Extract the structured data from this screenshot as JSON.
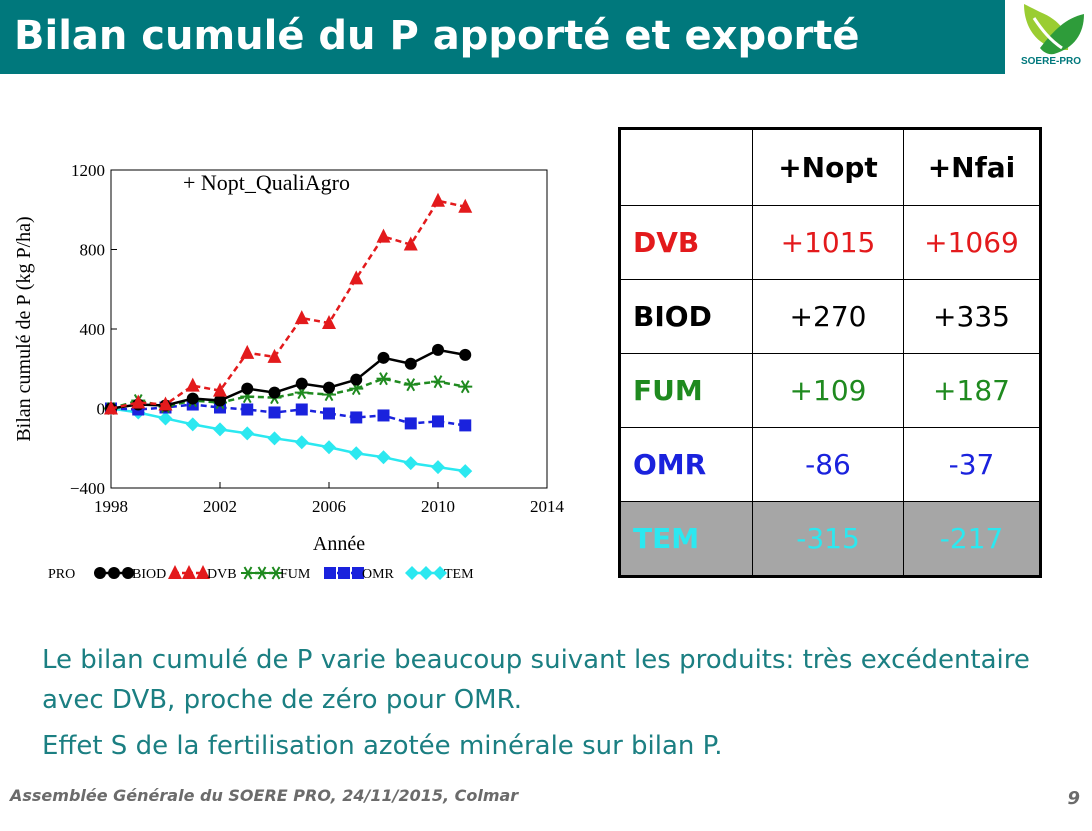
{
  "slide": {
    "title": "Bilan cumulé du P apporté et exporté",
    "logo_text": "SOERE-PRO",
    "footer": "Assemblée Générale du SOERE PRO, 24/11/2015, Colmar",
    "page_number": "9",
    "body_lines": [
      "Le bilan cumulé de P varie beaucoup suivant les produits: très excédentaire avec DVB, proche de zéro pour OMR.",
      "Effet S de la fertilisation azotée minérale sur bilan P."
    ]
  },
  "colors": {
    "title_bar": "#00787c",
    "BIOD": "#000000",
    "DVB": "#e31a1c",
    "FUM": "#1f8a1f",
    "OMR": "#1a22dd",
    "TEM": "#2be8f0"
  },
  "chart_data": {
    "type": "line",
    "title": "+ Nopt_QualiAgro",
    "xlabel": "Année",
    "ylabel": "Bilan cumulé de P (kg P/ha)",
    "xlim": [
      1998,
      2014
    ],
    "ylim": [
      -400,
      1200
    ],
    "xticks": [
      "1998",
      "2002",
      "2006",
      "2010",
      "2014"
    ],
    "yticks": [
      "1200",
      "800",
      "400",
      "0",
      "−400"
    ],
    "legend_title": "PRO",
    "legend_position": "bottom",
    "x": [
      1998,
      1999,
      2000,
      2001,
      2002,
      2003,
      2004,
      2005,
      2006,
      2007,
      2008,
      2009,
      2010,
      2011
    ],
    "series": [
      {
        "name": "BIOD",
        "marker": "circle",
        "values": [
          0,
          20,
          15,
          50,
          40,
          100,
          80,
          125,
          105,
          145,
          255,
          225,
          295,
          270
        ]
      },
      {
        "name": "DVB",
        "marker": "triangle",
        "values": [
          0,
          30,
          20,
          115,
          90,
          280,
          260,
          455,
          430,
          655,
          865,
          825,
          1045,
          1015
        ]
      },
      {
        "name": "FUM",
        "marker": "star",
        "values": [
          0,
          40,
          10,
          40,
          30,
          60,
          55,
          80,
          70,
          100,
          150,
          120,
          135,
          110
        ]
      },
      {
        "name": "OMR",
        "marker": "square",
        "values": [
          0,
          -5,
          5,
          20,
          5,
          -5,
          -20,
          -5,
          -25,
          -45,
          -35,
          -75,
          -65,
          -85
        ]
      },
      {
        "name": "TEM",
        "marker": "diamond",
        "values": [
          0,
          -20,
          -50,
          -80,
          -105,
          -125,
          -150,
          -170,
          -195,
          -225,
          -245,
          -275,
          -295,
          -315
        ]
      }
    ]
  },
  "table": {
    "headers": [
      "",
      "+Nopt",
      "+Nfai"
    ],
    "rows": [
      {
        "label": "DVB",
        "a": "+1015",
        "b": "+1069"
      },
      {
        "label": "BIOD",
        "a": "+270",
        "b": "+335"
      },
      {
        "label": "FUM",
        "a": "+109",
        "b": "+187"
      },
      {
        "label": "OMR",
        "a": "-86",
        "b": "-37"
      },
      {
        "label": "TEM",
        "a": "-315",
        "b": "-217"
      }
    ]
  }
}
